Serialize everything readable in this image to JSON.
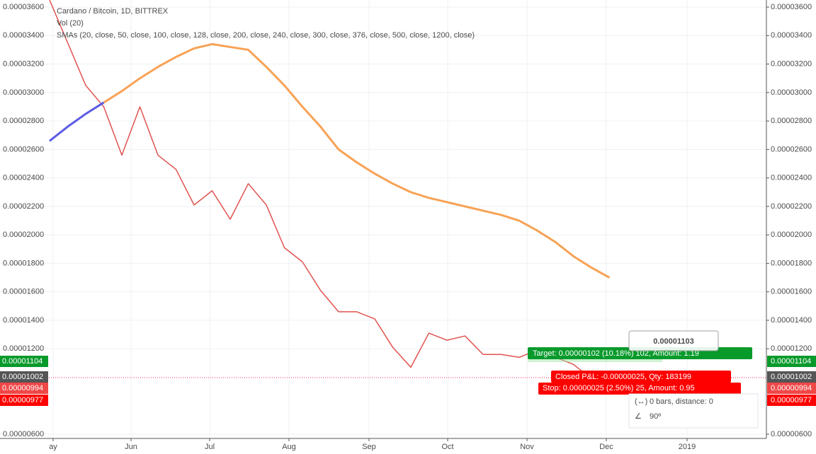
{
  "chart_data": {
    "type": "line",
    "title": "Cardano / Bitcoin, 1D, BITTREX",
    "subtitle": "Vol (20)",
    "indicator_label": "SMAs (20, close, 50, close, 100, close, 128, close, 200, close, 240, close, 300, close, 376, close, 500, close, 1200, close)",
    "x_labels": [
      "ay",
      "Jun",
      "Jul",
      "Aug",
      "Sep",
      "Oct",
      "Nov",
      "Dec",
      "2019"
    ],
    "series": [
      {
        "name": "Price",
        "color": "#e0534f",
        "values": [
          3.65e-05,
          3.35e-05,
          3.05e-05,
          2.9e-05,
          2.56e-05,
          2.9e-05,
          2.56e-05,
          2.46e-05,
          2.21e-05,
          2.31e-05,
          2.11e-05,
          2.36e-05,
          2.21e-05,
          1.91e-05,
          1.81e-05,
          1.61e-05,
          1.46e-05,
          1.46e-05,
          1.41e-05,
          1.21e-05,
          1.07e-05,
          1.31e-05,
          1.26e-05,
          1.29e-05,
          1.16e-05,
          1.16e-05,
          1.14e-05,
          1.19e-05,
          1.14e-05,
          1.09e-05,
          9.9e-06,
          1.02e-05
        ]
      },
      {
        "name": "SMA fast",
        "color": "#5b5be6",
        "values": [
          2.66e-05,
          2.76e-05,
          2.85e-05,
          2.93e-05,
          null,
          null,
          null,
          null,
          null,
          null,
          null,
          null,
          null,
          null,
          null,
          null,
          null,
          null,
          null,
          null,
          null,
          null,
          null,
          null,
          null,
          null,
          null,
          null,
          null,
          null,
          null,
          null
        ]
      },
      {
        "name": "SMA slow",
        "color": "#f7a255",
        "values": [
          null,
          null,
          null,
          2.93e-05,
          3.01e-05,
          3.1e-05,
          3.18e-05,
          3.25e-05,
          3.31e-05,
          3.34e-05,
          3.32e-05,
          3.3e-05,
          3.18e-05,
          3.05e-05,
          2.9e-05,
          2.76e-05,
          2.6e-05,
          2.51e-05,
          2.43e-05,
          2.36e-05,
          2.3e-05,
          2.26e-05,
          2.23e-05,
          2.2e-05,
          2.17e-05,
          2.14e-05,
          2.1e-05,
          2.03e-05,
          1.95e-05,
          1.85e-05,
          1.77e-05,
          1.7e-05
        ]
      }
    ],
    "ylim": [
      5.7e-06,
      3.65e-05
    ],
    "yticks": [
      {
        "value": 3.6e-05,
        "label": "0.00003600"
      },
      {
        "value": 3.4e-05,
        "label": "0.00003400"
      },
      {
        "value": 3.2e-05,
        "label": "0.00003200"
      },
      {
        "value": 3e-05,
        "label": "0.00003000"
      },
      {
        "value": 2.8e-05,
        "label": "0.00002800"
      },
      {
        "value": 2.6e-05,
        "label": "0.00002600"
      },
      {
        "value": 2.4e-05,
        "label": "0.00002400"
      },
      {
        "value": 2.2e-05,
        "label": "0.00002200"
      },
      {
        "value": 2e-05,
        "label": "0.00002000"
      },
      {
        "value": 1.8e-05,
        "label": "0.00001800"
      },
      {
        "value": 1.6e-05,
        "label": "0.00001600"
      },
      {
        "value": 1.4e-05,
        "label": "0.00001400"
      },
      {
        "value": 1.2e-05,
        "label": "0.00001200"
      },
      {
        "value": 6e-06,
        "label": "0.00000600"
      }
    ],
    "grid": true,
    "price_labels": [
      {
        "text": "0.00001104",
        "color": "#089a2b"
      },
      {
        "text": "0.00001002",
        "color": "#555555"
      },
      {
        "text": "0.00000994",
        "color": "#f04747"
      },
      {
        "text": "0.00000977",
        "color": "#ff0000"
      }
    ],
    "annotations": {
      "target": "Target: 0.00000102 (10.18%) 102, Amount: 1.19",
      "closed": "Closed P&L: -0.00000025, Qty: 183199",
      "stop": "Stop: 0.00000025 (2.50%) 25, Amount: 0.95",
      "crosshair_price": "0.00001103",
      "bars": "0 bars, distance: 0",
      "angle": "90º"
    }
  }
}
